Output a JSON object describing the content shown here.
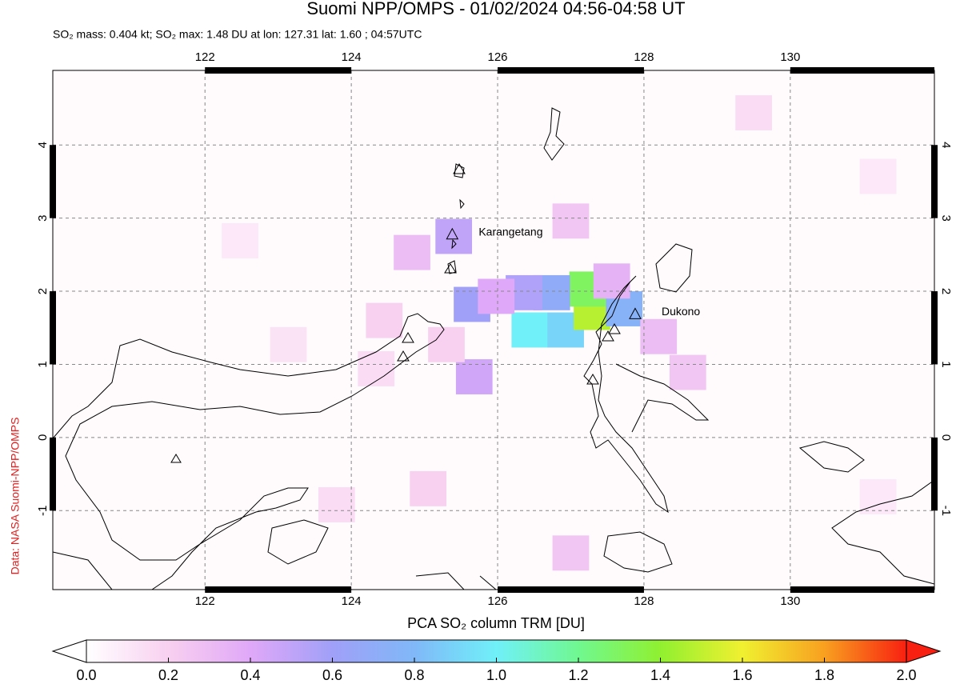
{
  "header": {
    "title": "Suomi NPP/OMPS - 01/02/2024 04:56-04:58 UT",
    "subtitle": "SO₂ mass: 0.404 kt; SO₂ max: 1.48 DU at lon: 127.31 lat: 1.60 ; 04:57UTC"
  },
  "map": {
    "lonlim": [
      119.92,
      131.97
    ],
    "latlim": [
      -2.08,
      5.02
    ],
    "lonticks": [
      122,
      124,
      126,
      128,
      130
    ],
    "latticks": [
      -1,
      0,
      1,
      2,
      3,
      4
    ],
    "pixels": {
      "lon": [
        125.65,
        125.4,
        126.44,
        126.93,
        127.29,
        127.23,
        126.74,
        126.36,
        127.73,
        127.56,
        125.68,
        124.83,
        125.98,
        127.0,
        127.0,
        128.6,
        125.05,
        123.8,
        129.5,
        123.14,
        122.48,
        131.2,
        131.2,
        128.2,
        125.3,
        124.45,
        124.34
      ],
      "lat": [
        1.82,
        2.75,
        1.47,
        1.47,
        1.71,
        2.03,
        1.98,
        1.98,
        1.76,
        2.14,
        0.83,
        2.53,
        1.93,
        2.96,
        -1.58,
        0.89,
        -0.7,
        -0.92,
        4.44,
        1.27,
        2.69,
        -0.81,
        3.57,
        1.38,
        1.27,
        1.6,
        0.94
      ],
      "values": [
        0.6,
        0.5,
        1.0,
        0.9,
        1.48,
        1.3,
        0.7,
        0.55,
        0.75,
        0.35,
        0.45,
        0.3,
        0.4,
        0.25,
        0.25,
        0.25,
        0.2,
        0.15,
        0.15,
        0.12,
        0.1,
        0.1,
        0.1,
        0.3,
        0.2,
        0.2,
        0.15
      ]
    },
    "volcanoes": [
      {
        "name": "Karangetang",
        "lon": 125.38,
        "lat": 2.78
      },
      {
        "name": "Dukono",
        "lon": 127.88,
        "lat": 1.69
      }
    ]
  },
  "colorbar": {
    "label": "PCA SO₂ column TRM [DU]",
    "lim": [
      0,
      2
    ],
    "ticks": [
      {
        "value": 0,
        "label": "0.0"
      },
      {
        "value": 0.2,
        "label": "0.2"
      },
      {
        "value": 0.4,
        "label": "0.4"
      },
      {
        "value": 0.6,
        "label": "0.6"
      },
      {
        "value": 0.8,
        "label": "0.8"
      },
      {
        "value": 1,
        "label": "1.0"
      },
      {
        "value": 1.2,
        "label": "1.2"
      },
      {
        "value": 1.4,
        "label": "1.4"
      },
      {
        "value": 1.6,
        "label": "1.6"
      },
      {
        "value": 1.8,
        "label": "1.8"
      },
      {
        "value": 2,
        "label": "2.0"
      }
    ]
  },
  "credit": "Data: NASA Suomi-NPP/OMPS"
}
